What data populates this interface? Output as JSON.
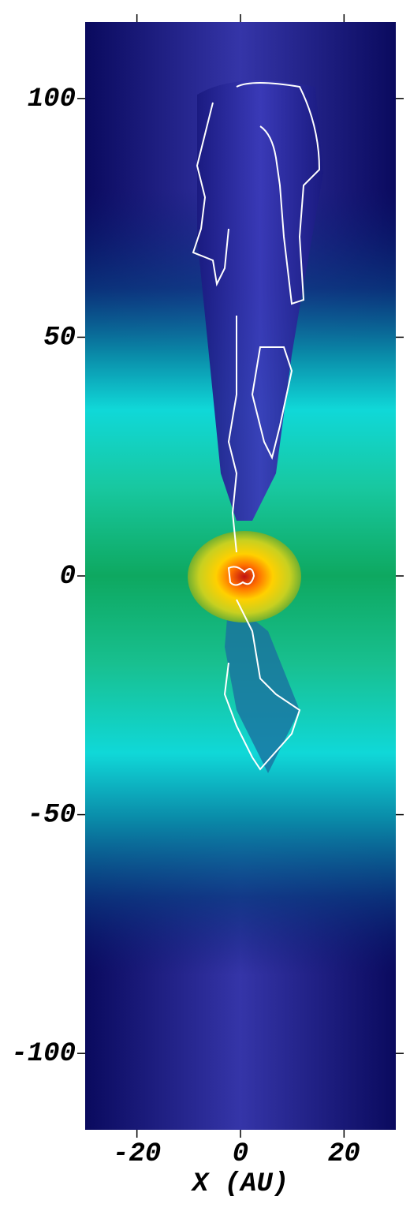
{
  "chart_data": {
    "type": "image",
    "xlabel": "X (AU)",
    "xlim": [
      -30,
      30
    ],
    "xticks": [
      -20,
      0,
      20
    ],
    "ylim": [
      -116,
      116
    ],
    "yticks": [
      -100,
      -50,
      0,
      50,
      100
    ]
  }
}
